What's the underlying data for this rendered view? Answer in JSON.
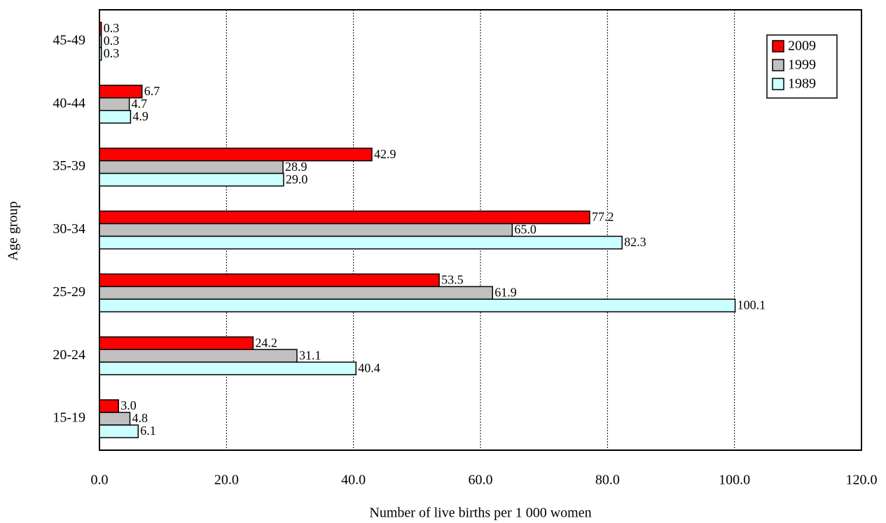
{
  "chart_data": {
    "type": "hbar",
    "x_label": "Number of live births per 1 000 women",
    "y_label": "Age group",
    "categories": [
      "15-19",
      "20-24",
      "25-29",
      "30-34",
      "35-39",
      "40-44",
      "45-49"
    ],
    "series": [
      {
        "name": "2009",
        "color": "#ff0000",
        "values": [
          3.0,
          24.2,
          53.5,
          77.2,
          42.9,
          6.7,
          0.3
        ],
        "value_labels": [
          "3.0",
          "24.2",
          "53.5",
          "77.2",
          "42.9",
          "6.7",
          "0.3"
        ]
      },
      {
        "name": "1999",
        "color": "#c0c0c0",
        "values": [
          4.8,
          31.1,
          61.9,
          65.0,
          28.9,
          4.7,
          0.3
        ],
        "value_labels": [
          "4.8",
          "31.1",
          "61.9",
          "65.0",
          "28.9",
          "4.7",
          "0.3"
        ]
      },
      {
        "name": "1989",
        "color": "#ccffff",
        "values": [
          6.1,
          40.4,
          100.1,
          82.3,
          29.0,
          4.9,
          0.3
        ],
        "value_labels": [
          "6.1",
          "40.4",
          "100.1",
          "82.3",
          "29.0",
          "4.9",
          "0.3"
        ]
      }
    ],
    "xlim": [
      0,
      120
    ],
    "xticks": [
      {
        "value": 0,
        "label": "0.0"
      },
      {
        "value": 20,
        "label": "20.0"
      },
      {
        "value": 40,
        "label": "40.0"
      },
      {
        "value": 60,
        "label": "60.0"
      },
      {
        "value": 80,
        "label": "80.0"
      },
      {
        "value": 100,
        "label": "100.0"
      },
      {
        "value": 120,
        "label": "120.0"
      }
    ],
    "grid": true,
    "legend": "top-right"
  }
}
